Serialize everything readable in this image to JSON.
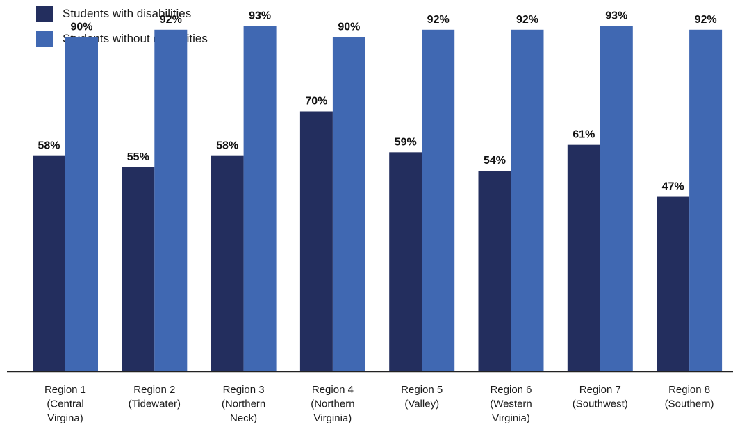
{
  "chart_data": {
    "type": "bar",
    "categories": [
      [
        "Region 1",
        "(Central",
        "Virgina)"
      ],
      [
        "Region 2",
        "(Tidewater)"
      ],
      [
        "Region 3",
        "(Northern",
        "Neck)"
      ],
      [
        "Region 4",
        "(Northern",
        "Virginia)"
      ],
      [
        "Region 5",
        "(Valley)"
      ],
      [
        "Region 6",
        "(Western",
        "Virginia)"
      ],
      [
        "Region 7",
        "(Southwest)"
      ],
      [
        "Region 8",
        "(Southern)"
      ]
    ],
    "series": [
      {
        "name": "Students with disabilities",
        "color": "#232e5e",
        "values": [
          58,
          55,
          58,
          70,
          59,
          54,
          61,
          47
        ],
        "labels": [
          "58%",
          "55%",
          "58%",
          "70%",
          "59%",
          "54%",
          "61%",
          "47%"
        ]
      },
      {
        "name": "Students without disabilities",
        "color": "#4068b2",
        "values": [
          90,
          92,
          93,
          90,
          92,
          92,
          93,
          92
        ],
        "labels": [
          "90%",
          "92%",
          "93%",
          "90%",
          "92%",
          "92%",
          "93%",
          "92%"
        ]
      }
    ],
    "ylim": [
      0,
      100
    ],
    "grid": false,
    "legend_position": "top-left"
  }
}
